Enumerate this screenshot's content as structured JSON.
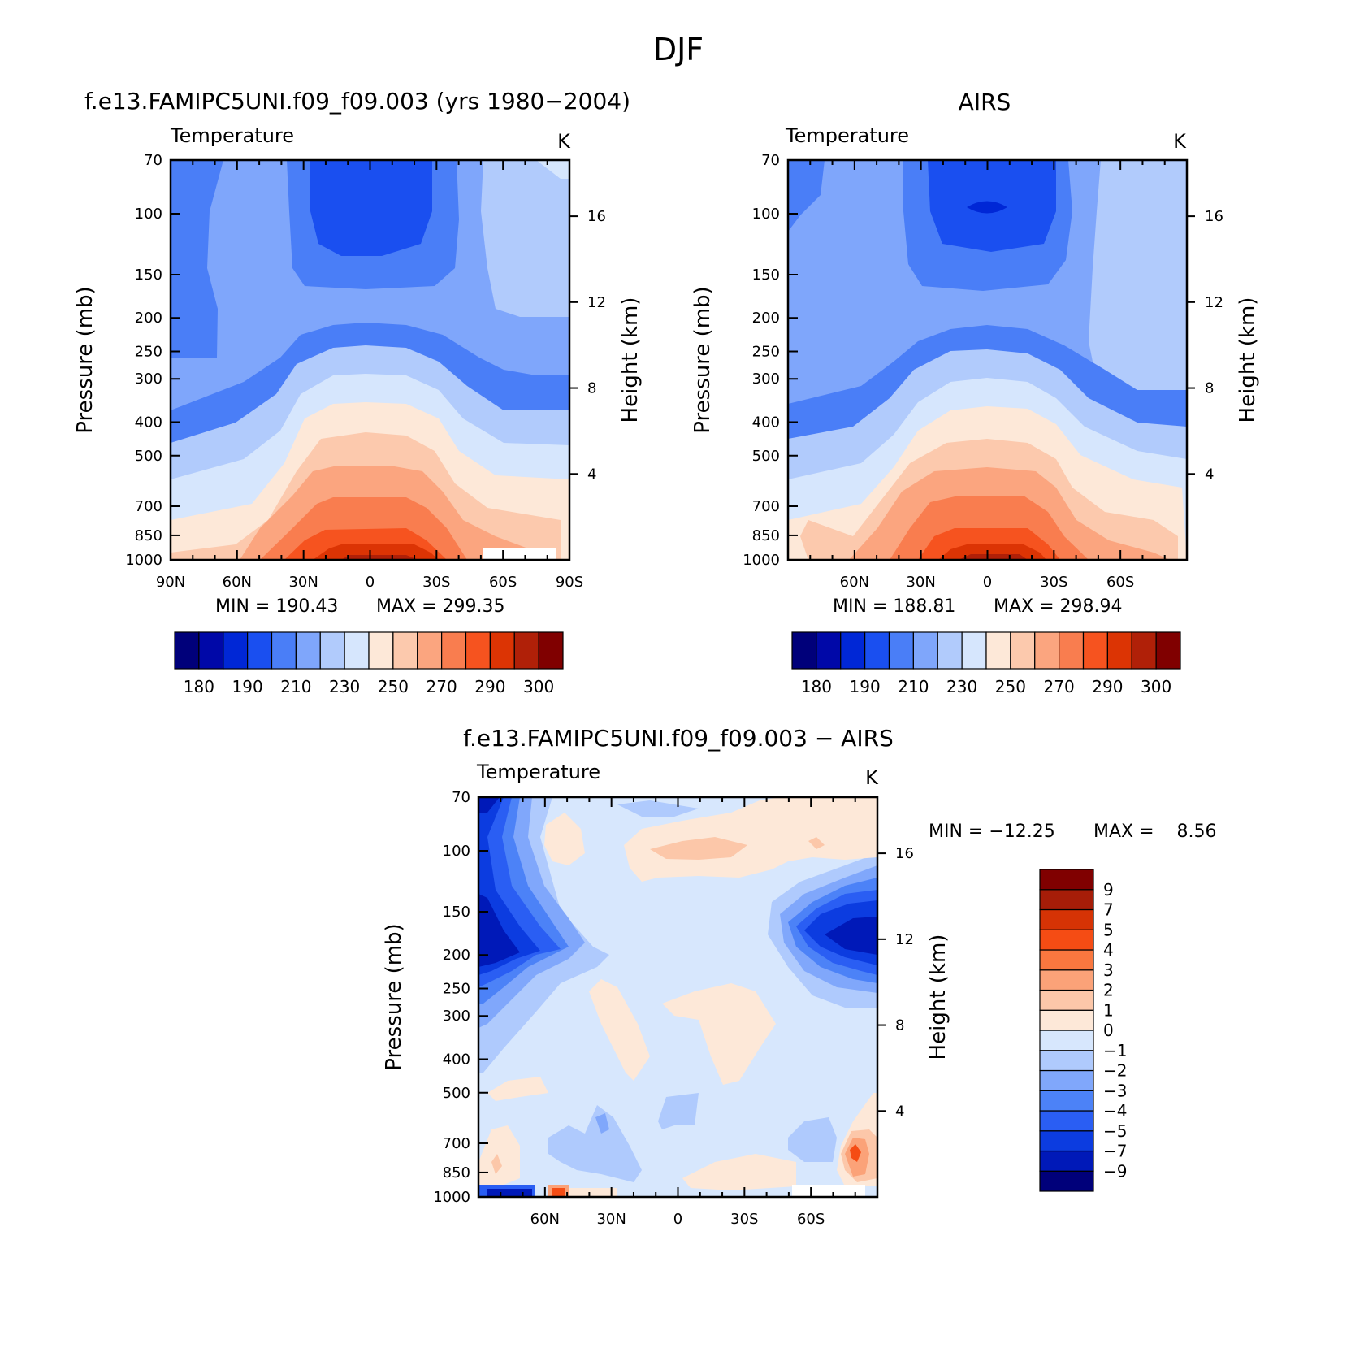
{
  "figure": {
    "title": "DJF"
  },
  "colors": {
    "temperature_scale": [
      "#00007a",
      "#0008a8",
      "#0027d6",
      "#1a4ff0",
      "#4a7ef7",
      "#7fa6fb",
      "#b1cbfc",
      "#d6e6fd",
      "#fde8d8",
      "#fcc9ad",
      "#fba57f",
      "#f97d4f",
      "#f6531f",
      "#dc3404",
      "#b02008",
      "#800000"
    ],
    "difference_scale": [
      "#00007a",
      "#0019b8",
      "#0c3ce0",
      "#2a5ef3",
      "#4c82f7",
      "#80a7fb",
      "#afcafd",
      "#d7e7fd",
      "#fde8d8",
      "#fcc7a9",
      "#fba278",
      "#f9773f",
      "#f54c14",
      "#d63305",
      "#a61d08",
      "#800000"
    ]
  },
  "chart_data": [
    {
      "type": "contour",
      "title": "f.e13.FAMIPC5UNI.f09_f09.003 (yrs 1980−2004)",
      "variable": "Temperature",
      "units": "K",
      "xlabel": "",
      "ylabel": "Pressure (mb)",
      "ylabel_right": "Height (km)",
      "x_ticks": [
        "90N",
        "60N",
        "30N",
        "0",
        "30S",
        "60S",
        "90S"
      ],
      "y_ticks": [
        70,
        100,
        150,
        200,
        250,
        300,
        400,
        500,
        700,
        850,
        1000
      ],
      "y_right_ticks": [
        16,
        12,
        8,
        4
      ],
      "y_scale": "log",
      "min_label": "MIN = 190.43",
      "max_label": "MAX = 299.35",
      "min": 190.43,
      "max": 299.35,
      "contour_levels": [
        180,
        185,
        190,
        200,
        210,
        220,
        230,
        240,
        250,
        260,
        270,
        280,
        290,
        295,
        300
      ],
      "colorbar_labels": [
        "180",
        "190",
        "210",
        "230",
        "250",
        "270",
        "290",
        "300"
      ],
      "colorbar_orientation": "horizontal"
    },
    {
      "type": "contour",
      "title": "AIRS",
      "variable": "Temperature",
      "units": "K",
      "xlabel": "",
      "ylabel": "Pressure (mb)",
      "ylabel_right": "Height (km)",
      "x_ticks": [
        "60N",
        "30N",
        "0",
        "30S",
        "60S"
      ],
      "y_ticks": [
        70,
        100,
        150,
        200,
        250,
        300,
        400,
        500,
        700,
        850,
        1000
      ],
      "y_right_ticks": [
        16,
        12,
        8,
        4
      ],
      "y_scale": "log",
      "min_label": "MIN = 188.81",
      "max_label": "MAX = 298.94",
      "min": 188.81,
      "max": 298.94,
      "contour_levels": [
        180,
        185,
        190,
        200,
        210,
        220,
        230,
        240,
        250,
        260,
        270,
        280,
        290,
        295,
        300
      ],
      "colorbar_labels": [
        "180",
        "190",
        "210",
        "230",
        "250",
        "270",
        "290",
        "300"
      ],
      "colorbar_orientation": "horizontal"
    },
    {
      "type": "contour",
      "title": "f.e13.FAMIPC5UNI.f09_f09.003 − AIRS",
      "variable": "Temperature",
      "units": "K",
      "xlabel": "",
      "ylabel": "Pressure (mb)",
      "ylabel_right": "Height (km)",
      "x_ticks": [
        "60N",
        "30N",
        "0",
        "30S",
        "60S"
      ],
      "y_ticks": [
        70,
        100,
        150,
        200,
        250,
        300,
        400,
        500,
        700,
        850,
        1000
      ],
      "y_right_ticks": [
        16,
        12,
        8,
        4
      ],
      "y_scale": "log",
      "min_label": "MIN = −12.25",
      "max_label": "MAX =    8.56",
      "min": -12.25,
      "max": 8.56,
      "contour_levels": [
        -9,
        -7,
        -5,
        -4,
        -3,
        -2,
        -1,
        0,
        1,
        2,
        3,
        4,
        5,
        7,
        9
      ],
      "colorbar_labels": [
        "9",
        "7",
        "5",
        "4",
        "3",
        "2",
        "1",
        "0",
        "−1",
        "−2",
        "−3",
        "−4",
        "−5",
        "−7",
        "−9"
      ],
      "colorbar_orientation": "vertical"
    }
  ]
}
